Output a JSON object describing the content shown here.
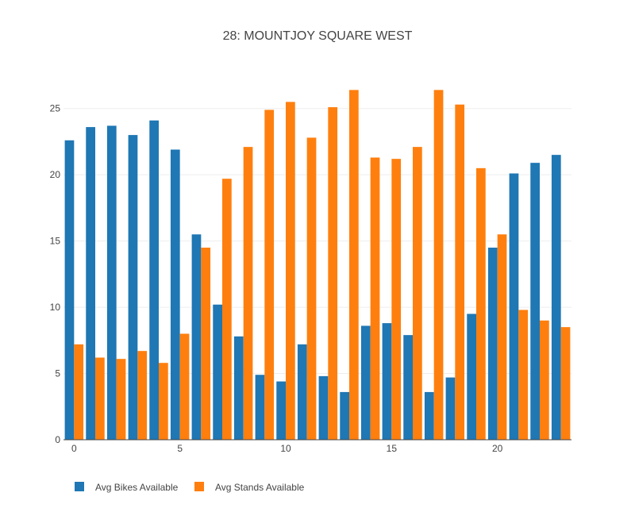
{
  "chart_data": {
    "type": "bar",
    "title": "28: MOUNTJOY SQUARE WEST",
    "xlabel": "",
    "ylabel": "",
    "x": [
      0,
      1,
      2,
      3,
      4,
      5,
      6,
      7,
      8,
      9,
      10,
      11,
      12,
      13,
      14,
      15,
      16,
      17,
      18,
      19,
      20,
      21,
      22,
      23
    ],
    "xlim": [
      -0.5,
      23.5
    ],
    "ylim": [
      0,
      27.2
    ],
    "x_ticks": [
      0,
      5,
      10,
      15,
      20
    ],
    "y_ticks": [
      0,
      5,
      10,
      15,
      20,
      25
    ],
    "grid": true,
    "legend_position": "bottom-left",
    "series": [
      {
        "name": "Avg Bikes Available",
        "color": "#1f77b4",
        "values": [
          22.6,
          23.6,
          23.7,
          23.0,
          24.1,
          21.9,
          15.5,
          10.2,
          7.8,
          4.9,
          4.4,
          7.2,
          4.8,
          3.6,
          8.6,
          8.8,
          7.9,
          3.6,
          4.7,
          9.5,
          14.5,
          20.1,
          20.9,
          21.5
        ]
      },
      {
        "name": "Avg Stands Available",
        "color": "#ff7f0e",
        "values": [
          7.2,
          6.2,
          6.1,
          6.7,
          5.8,
          8.0,
          14.5,
          19.7,
          22.1,
          24.9,
          25.5,
          22.8,
          25.1,
          26.4,
          21.3,
          21.2,
          22.1,
          26.4,
          25.3,
          20.5,
          15.5,
          9.8,
          9.0,
          8.5
        ]
      }
    ]
  }
}
